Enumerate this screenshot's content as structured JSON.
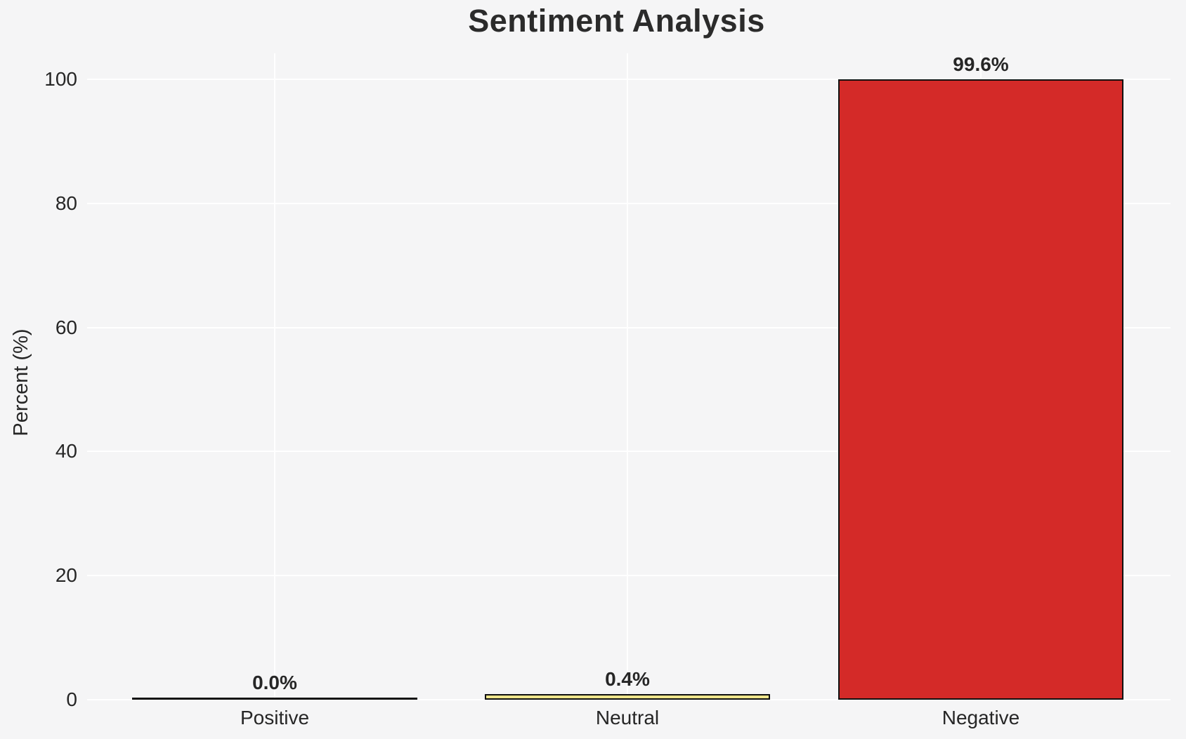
{
  "chart_data": {
    "type": "bar",
    "title": "Sentiment Analysis",
    "xlabel": "",
    "ylabel": "Percent (%)",
    "categories": [
      "Positive",
      "Neutral",
      "Negative"
    ],
    "values": [
      0.0,
      0.4,
      99.6
    ],
    "value_labels": [
      "0.0%",
      "0.4%",
      "99.6%"
    ],
    "bar_colors": [
      null,
      "#f0e68c",
      "#d42a28"
    ],
    "bar_edge_color": "#111111",
    "yticks": [
      0,
      20,
      40,
      60,
      80,
      100
    ],
    "ylim": [
      0,
      104
    ],
    "grid": true,
    "legend": false,
    "gridline_color": "#ffffff",
    "background_color": "#f5f5f6",
    "text_color": "#262626"
  }
}
